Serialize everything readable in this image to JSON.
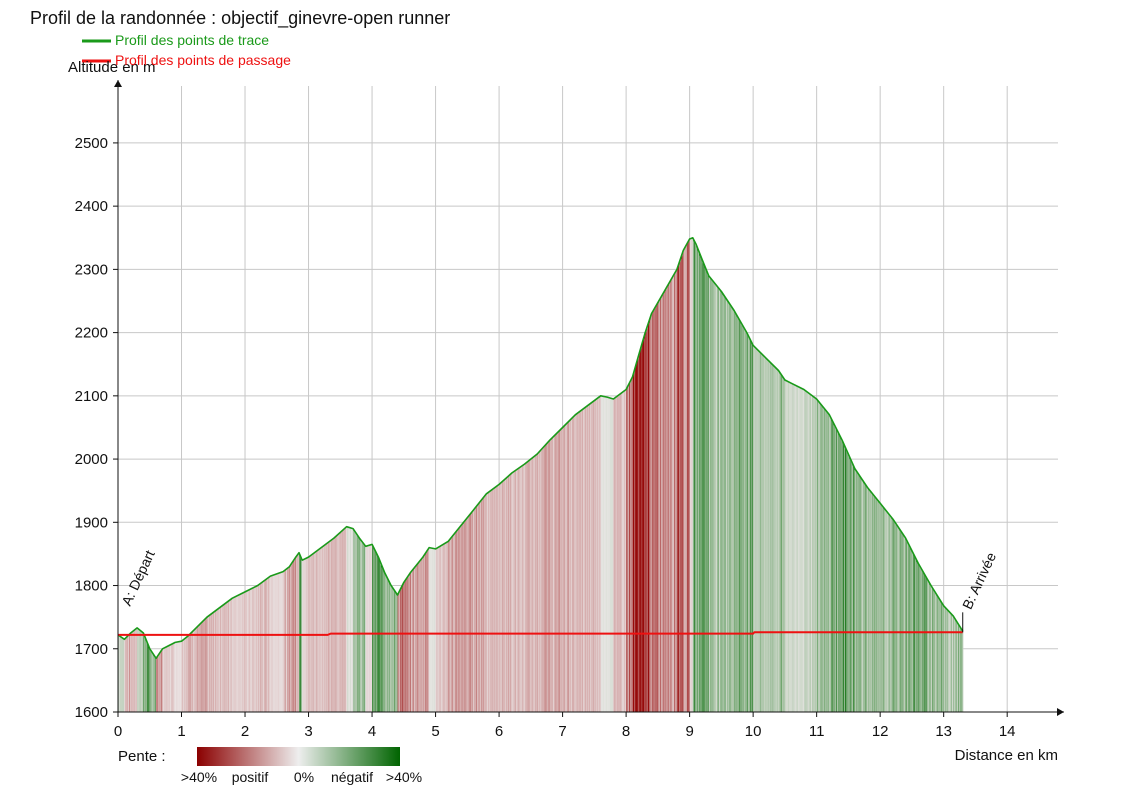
{
  "chart_data": {
    "type": "area",
    "title": "Profil de la randonnée : objectif_ginevre-open runner",
    "xlabel": "Distance en km",
    "ylabel": "Altitude en m",
    "xlim": [
      0,
      14.8
    ],
    "ylim": [
      1600,
      2590
    ],
    "x_ticks": [
      0,
      1,
      2,
      3,
      4,
      5,
      6,
      7,
      8,
      9,
      10,
      11,
      12,
      13,
      14
    ],
    "y_ticks": [
      1600,
      1700,
      1800,
      1900,
      2000,
      2100,
      2200,
      2300,
      2400,
      2500
    ],
    "grid": true,
    "legend": [
      {
        "label": "Profil des points de trace",
        "color": "#1a9a1a"
      },
      {
        "label": "Profil des points de passage",
        "color": "#ee1111"
      }
    ],
    "series": [
      {
        "name": "Profil des points de trace",
        "color": "#1a9a1a",
        "x": [
          0,
          0.1,
          0.2,
          0.3,
          0.4,
          0.5,
          0.6,
          0.7,
          0.8,
          0.9,
          1.0,
          1.1,
          1.2,
          1.4,
          1.6,
          1.8,
          2.0,
          2.2,
          2.4,
          2.6,
          2.7,
          2.8,
          2.85,
          2.9,
          3.0,
          3.2,
          3.4,
          3.6,
          3.7,
          3.8,
          3.9,
          4.0,
          4.1,
          4.2,
          4.3,
          4.4,
          4.5,
          4.6,
          4.8,
          4.9,
          5.0,
          5.2,
          5.4,
          5.6,
          5.8,
          6.0,
          6.2,
          6.4,
          6.6,
          6.8,
          7.0,
          7.2,
          7.4,
          7.6,
          7.7,
          7.8,
          8.0,
          8.1,
          8.2,
          8.3,
          8.4,
          8.6,
          8.8,
          8.9,
          9.0,
          9.05,
          9.1,
          9.2,
          9.3,
          9.5,
          9.7,
          9.9,
          10.0,
          10.2,
          10.4,
          10.5,
          10.6,
          10.8,
          11.0,
          11.2,
          11.4,
          11.6,
          11.8,
          12.0,
          12.2,
          12.4,
          12.6,
          12.8,
          13.0,
          13.15,
          13.3
        ],
        "y": [
          1722,
          1715,
          1725,
          1733,
          1725,
          1700,
          1685,
          1700,
          1705,
          1710,
          1712,
          1720,
          1730,
          1750,
          1765,
          1780,
          1790,
          1800,
          1815,
          1822,
          1830,
          1845,
          1852,
          1840,
          1845,
          1860,
          1875,
          1893,
          1890,
          1875,
          1862,
          1865,
          1845,
          1820,
          1800,
          1785,
          1805,
          1820,
          1845,
          1860,
          1858,
          1870,
          1895,
          1920,
          1945,
          1960,
          1978,
          1992,
          2008,
          2030,
          2050,
          2070,
          2085,
          2100,
          2098,
          2095,
          2110,
          2130,
          2165,
          2200,
          2230,
          2265,
          2300,
          2330,
          2348,
          2350,
          2340,
          2315,
          2290,
          2265,
          2235,
          2200,
          2180,
          2160,
          2140,
          2125,
          2120,
          2110,
          2095,
          2070,
          2030,
          1985,
          1955,
          1930,
          1905,
          1875,
          1835,
          1800,
          1768,
          1752,
          1728
        ]
      },
      {
        "name": "Profil des points de passage",
        "color": "#ee1111",
        "x": [
          0,
          3.3,
          3.35,
          10.0,
          10.02,
          13.3
        ],
        "y": [
          1722,
          1722,
          1724,
          1724,
          1726,
          1726
        ]
      }
    ],
    "annotations": [
      {
        "label": "A: Départ",
        "x": 0,
        "y": 1722
      },
      {
        "label": "B: Arrivée",
        "x": 13.3,
        "y": 1726
      }
    ],
    "slope_legend": {
      "label": "Pente :",
      "ticks": [
        ">40%",
        "positif",
        "0%",
        "négatif",
        ">40%"
      ],
      "colors": [
        "#8b0000",
        "#f0eeee",
        "#006400"
      ]
    }
  }
}
